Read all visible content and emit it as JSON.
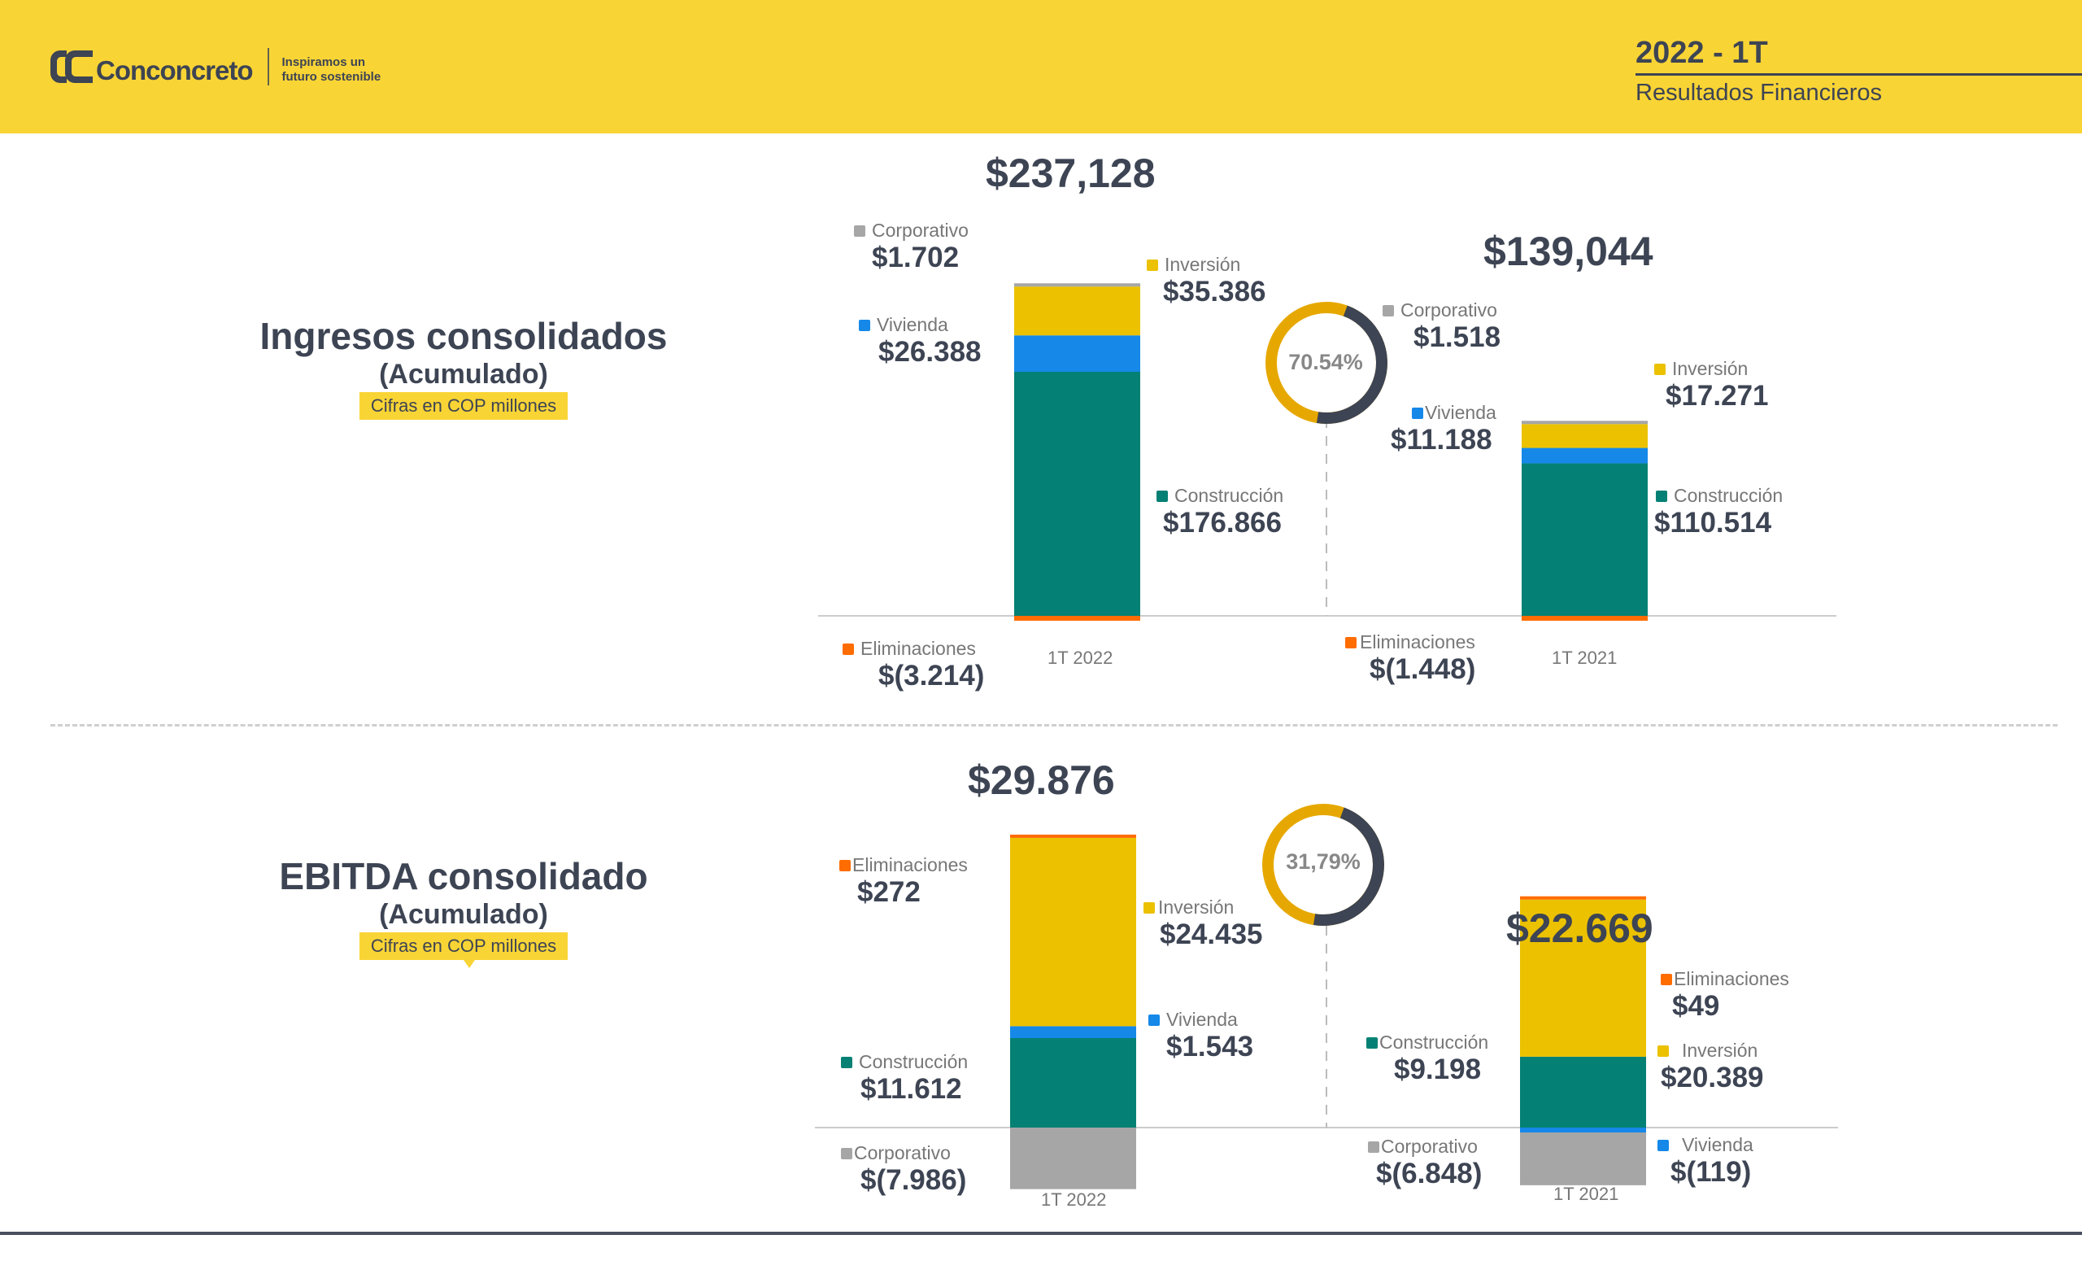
{
  "header": {
    "brand": "Conconcreto",
    "tagline_line1": "Inspiramos un",
    "tagline_line2": "futuro sostenible",
    "period": "2022 - 1T",
    "subtitle": "Resultados Financieros"
  },
  "colors": {
    "header_bg": "#f9d435",
    "text_dark": "#3d4453",
    "Corporativo": "#a6a6a6",
    "Inversion": "#ebc100",
    "Vivienda": "#1588e8",
    "Construccion": "#048174",
    "Eliminaciones": "#ff6c00",
    "donut_primary": "#e6a800",
    "donut_secondary": "#3d4453"
  },
  "sections": [
    {
      "title": "Ingresos consolidados",
      "subtitle": "(Acumulado)",
      "unit": "Cifras en COP millones"
    },
    {
      "title": "EBITDA consolidado",
      "subtitle": "(Acumulado)",
      "unit": "Cifras en COP millones"
    }
  ],
  "chart_data": [
    {
      "type": "bar",
      "stacked": true,
      "title": "Ingresos consolidados (Acumulado)",
      "unit": "COP millones",
      "categories": [
        "1T 2022",
        "1T 2021"
      ],
      "totals": [
        "$237,128",
        "$139,044"
      ],
      "total_values": [
        237128,
        139044
      ],
      "growth_label": "70.54%",
      "growth_value": 70.54,
      "series": [
        {
          "name": "Construcción",
          "key": "Construccion",
          "values": [
            176866,
            110514
          ],
          "labels": [
            "$176.866",
            "$110.514"
          ]
        },
        {
          "name": "Vivienda",
          "key": "Vivienda",
          "values": [
            26388,
            11188
          ],
          "labels": [
            "$26.388",
            "$11.188"
          ]
        },
        {
          "name": "Inversión",
          "key": "Inversion",
          "values": [
            35386,
            17271
          ],
          "labels": [
            "$35.386",
            "$17.271"
          ]
        },
        {
          "name": "Corporativo",
          "key": "Corporativo",
          "values": [
            1702,
            1518
          ],
          "labels": [
            "$1.702",
            "$1.518"
          ]
        },
        {
          "name": "Eliminaciones",
          "key": "Eliminaciones",
          "values": [
            -3214,
            -1448
          ],
          "labels": [
            "$(3.214)",
            "$(1.448)"
          ]
        }
      ],
      "ylim": [
        -6000,
        245000
      ],
      "grid": false,
      "legend": "inline-labels"
    },
    {
      "type": "bar",
      "stacked": true,
      "title": "EBITDA consolidado (Acumulado)",
      "unit": "COP millones",
      "categories": [
        "1T 2022",
        "1T 2021"
      ],
      "totals": [
        "$29.876",
        "$22.669"
      ],
      "total_values": [
        29876,
        22669
      ],
      "growth_label": "31,79%",
      "growth_value": 31.79,
      "series": [
        {
          "name": "Construcción",
          "key": "Construccion",
          "values": [
            11612,
            9198
          ],
          "labels": [
            "$11.612",
            "$9.198"
          ]
        },
        {
          "name": "Vivienda",
          "key": "Vivienda",
          "values": [
            1543,
            -119
          ],
          "labels": [
            "$1.543",
            "$(119)"
          ]
        },
        {
          "name": "Inversión",
          "key": "Inversion",
          "values": [
            24435,
            20389
          ],
          "labels": [
            "$24.435",
            "$20.389"
          ]
        },
        {
          "name": "Eliminaciones",
          "key": "Eliminaciones",
          "values": [
            272,
            49
          ],
          "labels": [
            "$272",
            "$49"
          ]
        },
        {
          "name": "Corporativo",
          "key": "Corporativo",
          "values": [
            -7986,
            -6848
          ],
          "labels": [
            "$(7.986)",
            "$(6.848)"
          ]
        }
      ],
      "ylim": [
        -10000,
        38000
      ],
      "grid": false,
      "legend": "inline-labels"
    }
  ]
}
